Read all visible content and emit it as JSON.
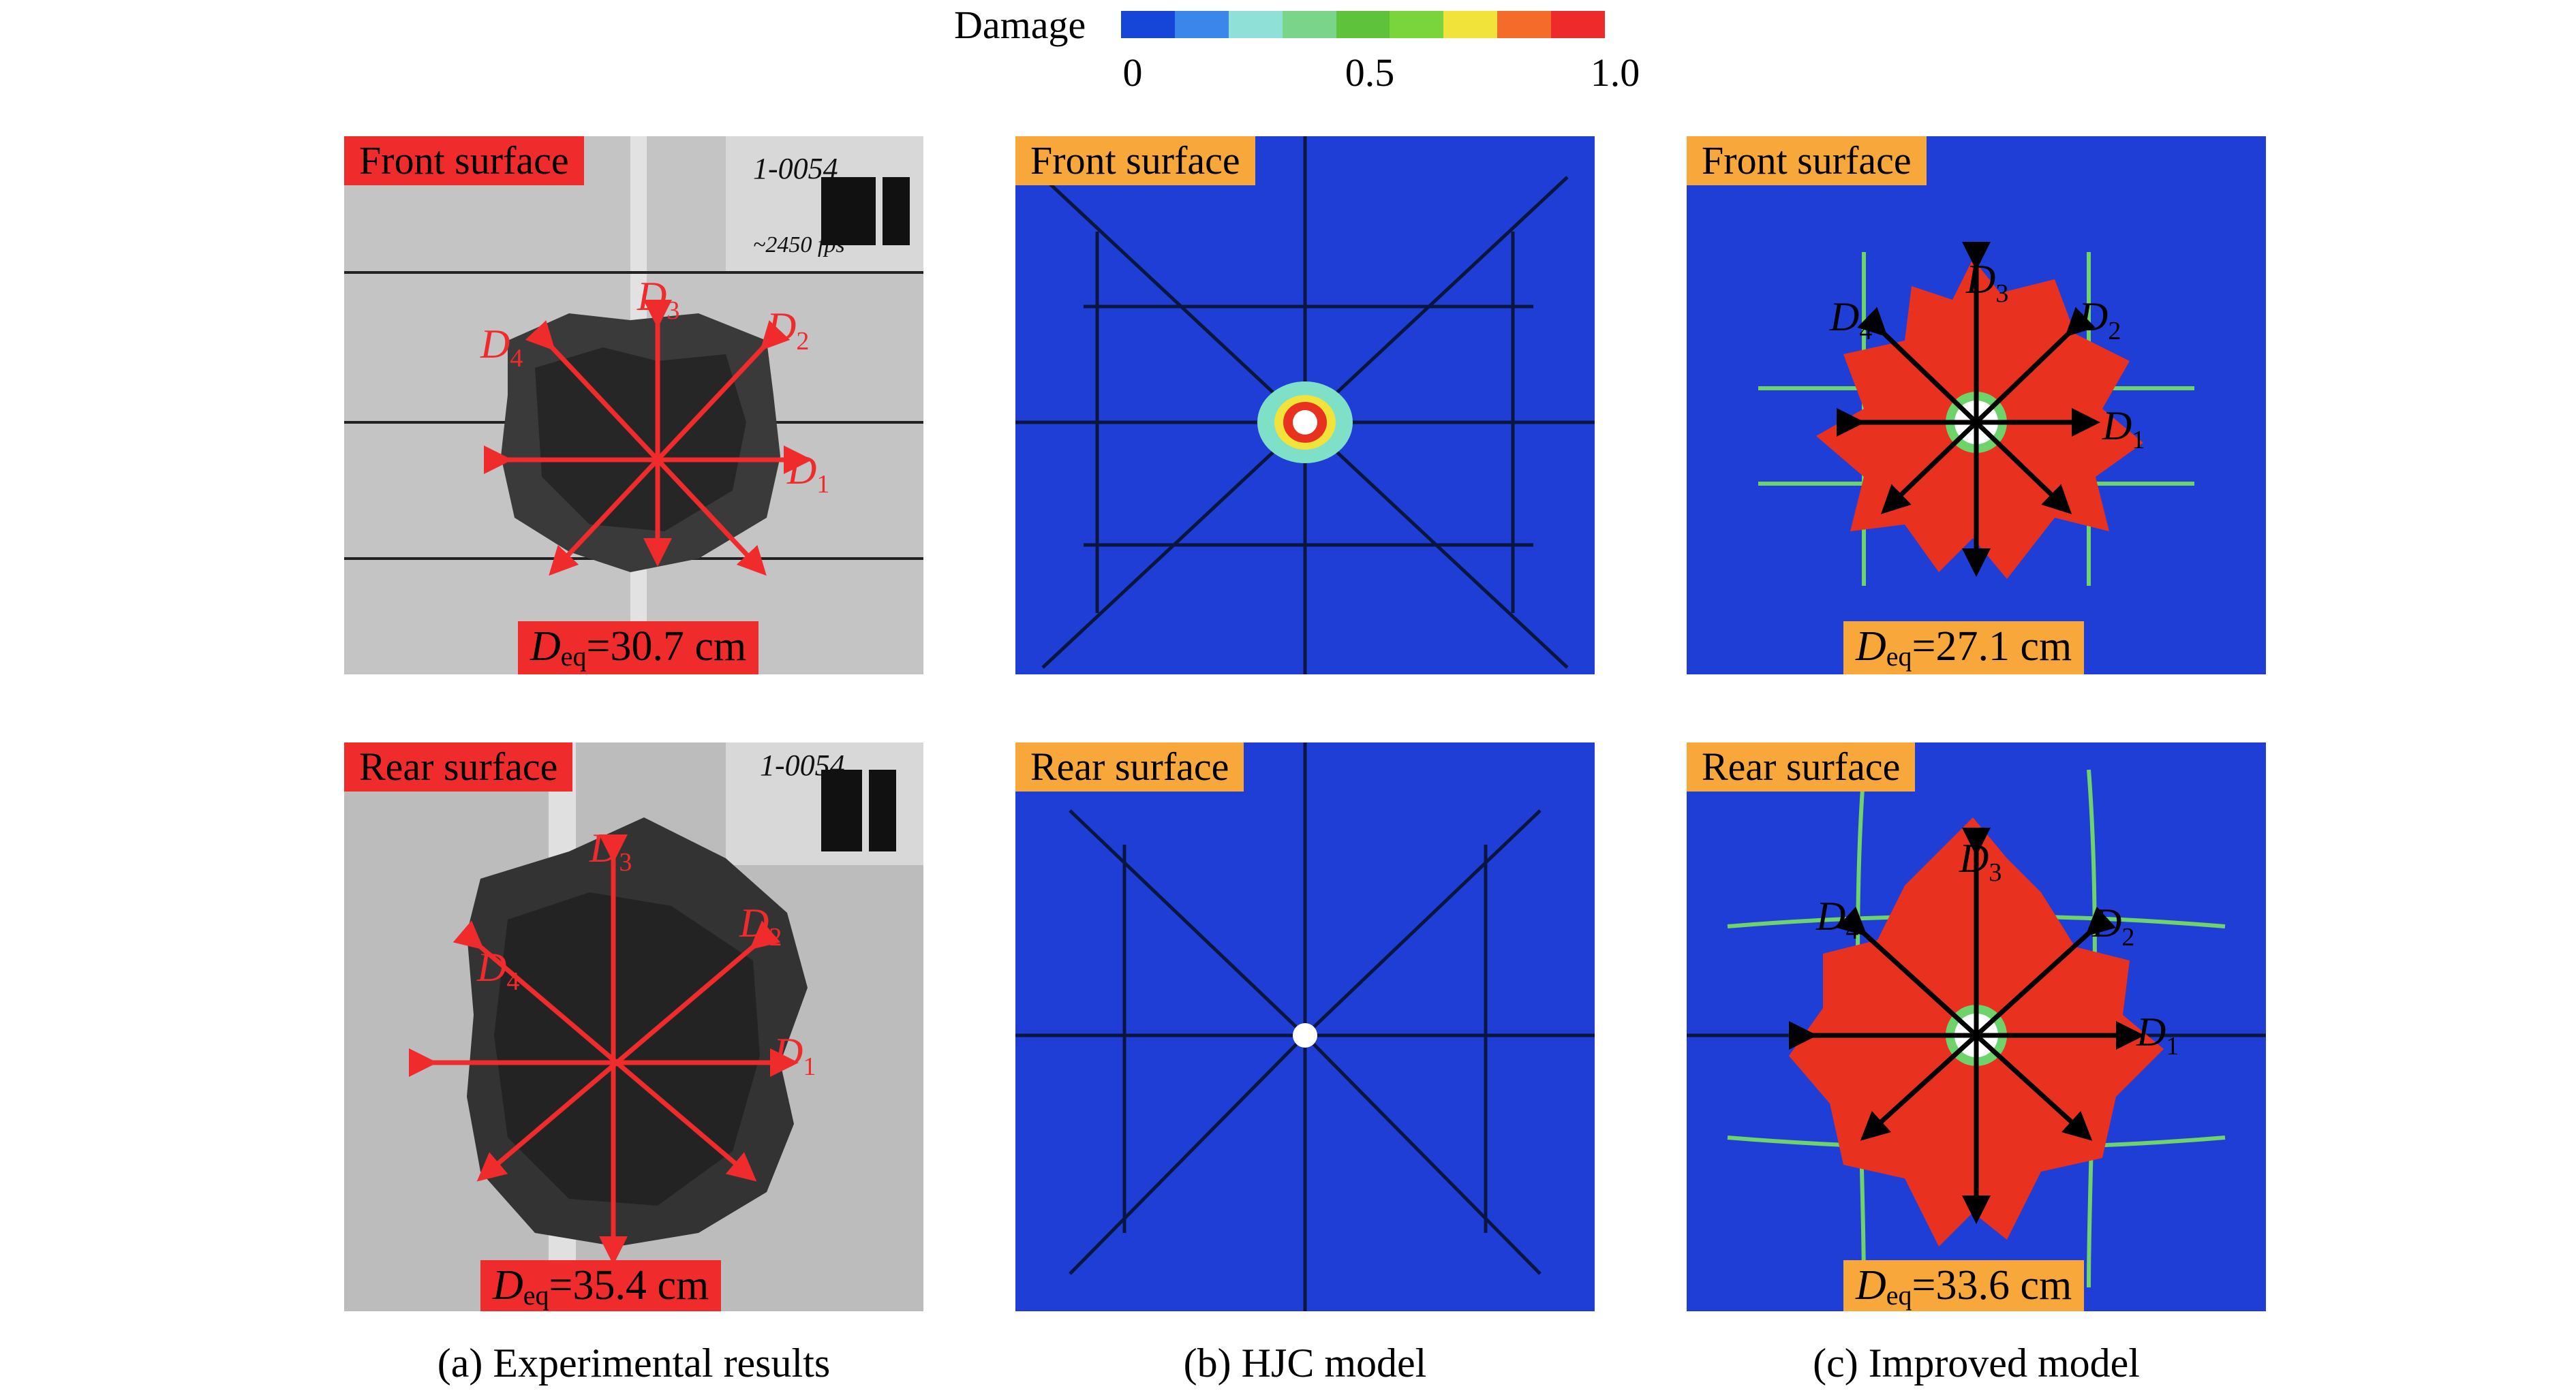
{
  "colorbar": {
    "title": "Damage",
    "ticks": [
      "0",
      "0.5",
      "1.0"
    ],
    "colors": [
      "#1646d8",
      "#3a86ea",
      "#8fe0d6",
      "#7ad58a",
      "#5ec33a",
      "#7ad43c",
      "#f2e33a",
      "#f46b2a",
      "#ee2a2a"
    ]
  },
  "columns": [
    {
      "caption": "(a) Experimental results",
      "front": {
        "label": "Front surface",
        "deq_symbol": "D",
        "deq_sub": "eq",
        "deq_value": "=30.7 cm"
      },
      "rear": {
        "label": "Rear surface",
        "deq_symbol": "D",
        "deq_sub": "eq",
        "deq_value": "=35.4 cm"
      },
      "photo_text_front": [
        "1-0054",
        "~2450 fps"
      ],
      "photo_text_rear": [
        "1-0054"
      ]
    },
    {
      "caption": "(b) HJC model",
      "front": {
        "label": "Front surface"
      },
      "rear": {
        "label": "Rear surface"
      }
    },
    {
      "caption": "(c) Improved model",
      "front": {
        "label": "Front surface",
        "deq_symbol": "D",
        "deq_sub": "eq",
        "deq_value": "=27.1 cm"
      },
      "rear": {
        "label": "Rear surface",
        "deq_symbol": "D",
        "deq_sub": "eq",
        "deq_value": "=33.6 cm"
      }
    }
  ],
  "diameter_labels": {
    "symbol": "D",
    "subs": [
      "1",
      "2",
      "3",
      "4"
    ]
  },
  "colors": {
    "photo_label_bg": "#ef2b2b",
    "sim_label_bg": "#f8a83a",
    "sim_background": "#1f3ed6",
    "damage_red": "#e8321f",
    "arrow_red": "#ef2b2b"
  }
}
